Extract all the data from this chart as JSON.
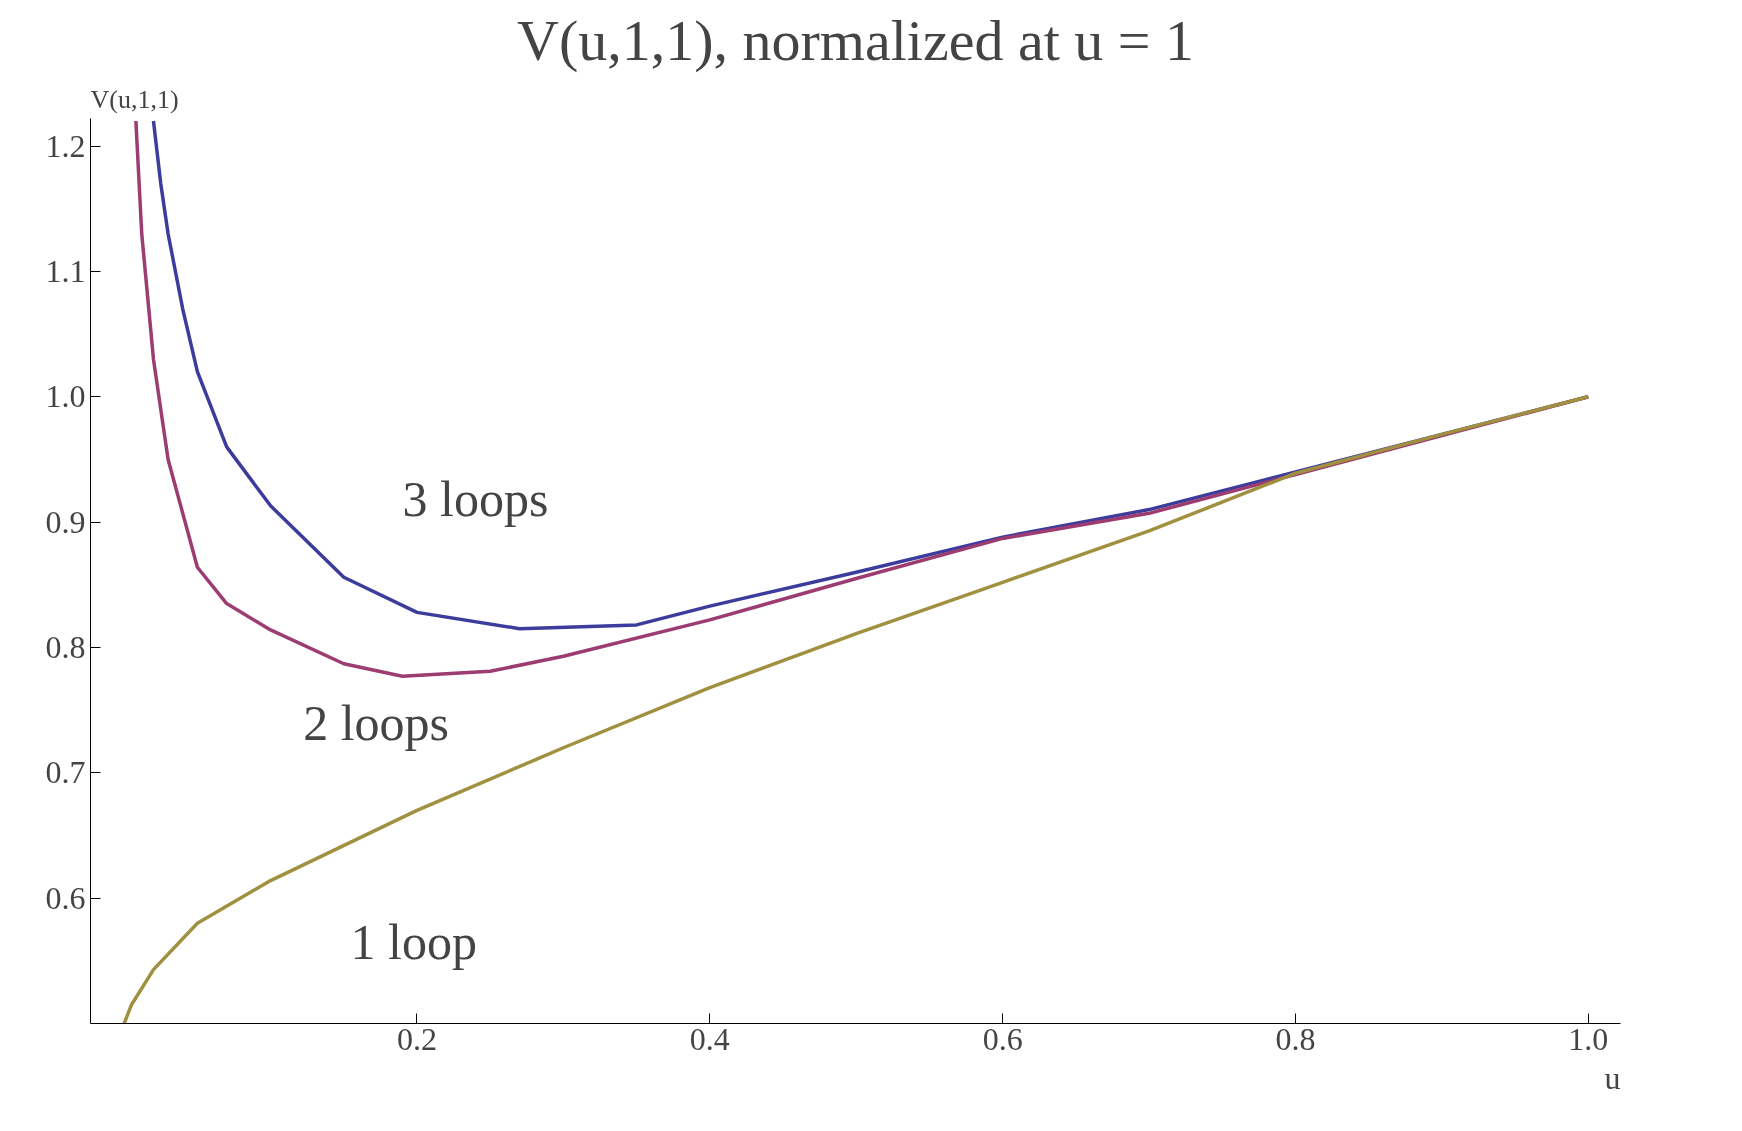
{
  "chart_data": {
    "type": "line",
    "title": "V(u,1,1), normalized at u = 1",
    "xlabel": "u",
    "ylabel": "V(u,1,1)",
    "xlim": [
      -0.023,
      1.022
    ],
    "ylim": [
      0.5,
      1.222
    ],
    "xticks": [
      0.2,
      0.4,
      0.6,
      0.8,
      {
        "value": 1,
        "label": "1.0"
      }
    ],
    "yticks": [
      0.6,
      0.7,
      0.8,
      0.9,
      {
        "value": 1,
        "label": "1.0"
      },
      1.1,
      1.2
    ],
    "grid": false,
    "marker": "none",
    "line_style": "solid",
    "series": [
      {
        "name": "3 loops",
        "x": [
          0.02,
          0.025,
          0.03,
          0.04,
          0.05,
          0.07,
          0.1,
          0.15,
          0.2,
          0.27,
          0.35,
          0.4,
          0.5,
          0.6,
          0.7,
          0.8,
          0.9,
          1.0
        ],
        "values": [
          1.22,
          1.17,
          1.13,
          1.07,
          1.02,
          0.96,
          0.913,
          0.856,
          0.828,
          0.815,
          0.818,
          0.833,
          0.86,
          0.888,
          0.91,
          0.94,
          0.97,
          1.0
        ],
        "color": "#3c3c9c"
      },
      {
        "name": "2 loops",
        "x": [
          0.008,
          0.012,
          0.02,
          0.03,
          0.05,
          0.07,
          0.1,
          0.15,
          0.19,
          0.25,
          0.3,
          0.4,
          0.5,
          0.6,
          0.7,
          0.8,
          0.9,
          1.0
        ],
        "values": [
          1.22,
          1.13,
          1.03,
          0.95,
          0.864,
          0.835,
          0.814,
          0.787,
          0.777,
          0.781,
          0.793,
          0.822,
          0.855,
          0.887,
          0.907,
          0.938,
          0.969,
          1.0
        ],
        "color": "#9c3c70"
      },
      {
        "name": "1 loop",
        "x": [
          0.0,
          0.005,
          0.02,
          0.05,
          0.1,
          0.2,
          0.3,
          0.4,
          0.5,
          0.6,
          0.7,
          0.8,
          0.9,
          1.0
        ],
        "values": [
          0.5,
          0.515,
          0.543,
          0.58,
          0.614,
          0.67,
          0.72,
          0.768,
          0.811,
          0.852,
          0.893,
          0.939,
          0.97,
          1.0
        ],
        "color": "#a09040"
      }
    ]
  }
}
